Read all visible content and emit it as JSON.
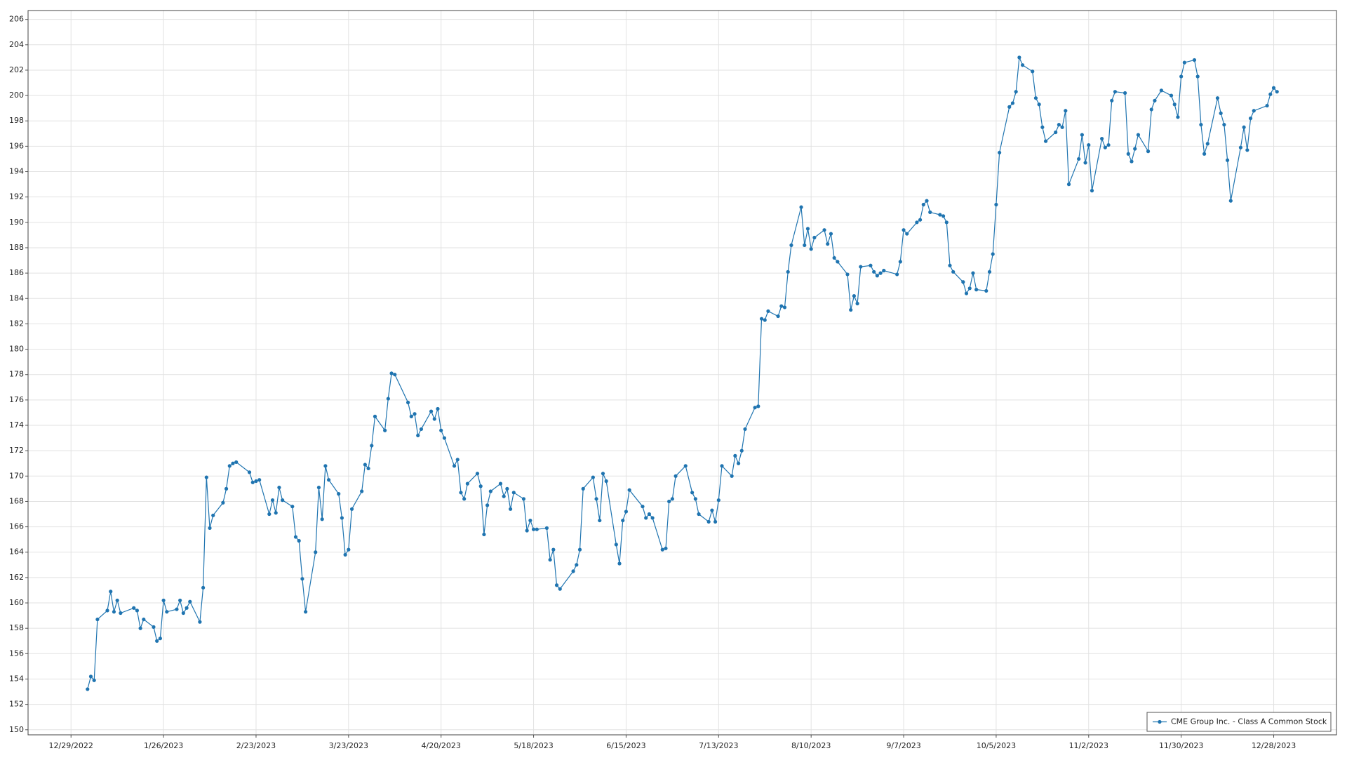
{
  "chart_data": {
    "type": "line",
    "x": [
      "1/3/2023",
      "1/4/2023",
      "1/5/2023",
      "1/6/2023",
      "1/9/2023",
      "1/10/2023",
      "1/11/2023",
      "1/12/2023",
      "1/13/2023",
      "1/17/2023",
      "1/18/2023",
      "1/19/2023",
      "1/20/2023",
      "1/23/2023",
      "1/24/2023",
      "1/25/2023",
      "1/26/2023",
      "1/27/2023",
      "1/30/2023",
      "1/31/2023",
      "2/1/2023",
      "2/2/2023",
      "2/3/2023",
      "2/6/2023",
      "2/7/2023",
      "2/8/2023",
      "2/9/2023",
      "2/10/2023",
      "2/13/2023",
      "2/14/2023",
      "2/15/2023",
      "2/16/2023",
      "2/17/2023",
      "2/21/2023",
      "2/22/2023",
      "2/23/2023",
      "2/24/2023",
      "2/27/2023",
      "2/28/2023",
      "3/1/2023",
      "3/2/2023",
      "3/3/2023",
      "3/6/2023",
      "3/7/2023",
      "3/8/2023",
      "3/9/2023",
      "3/10/2023",
      "3/13/2023",
      "3/14/2023",
      "3/15/2023",
      "3/16/2023",
      "3/17/2023",
      "3/20/2023",
      "3/21/2023",
      "3/22/2023",
      "3/23/2023",
      "3/24/2023",
      "3/27/2023",
      "3/28/2023",
      "3/29/2023",
      "3/30/2023",
      "3/31/2023",
      "4/3/2023",
      "4/4/2023",
      "4/5/2023",
      "4/6/2023",
      "4/10/2023",
      "4/11/2023",
      "4/12/2023",
      "4/13/2023",
      "4/14/2023",
      "4/17/2023",
      "4/18/2023",
      "4/19/2023",
      "4/20/2023",
      "4/21/2023",
      "4/24/2023",
      "4/25/2023",
      "4/26/2023",
      "4/27/2023",
      "4/28/2023",
      "5/1/2023",
      "5/2/2023",
      "5/3/2023",
      "5/4/2023",
      "5/5/2023",
      "5/8/2023",
      "5/9/2023",
      "5/10/2023",
      "5/11/2023",
      "5/12/2023",
      "5/15/2023",
      "5/16/2023",
      "5/17/2023",
      "5/18/2023",
      "5/19/2023",
      "5/22/2023",
      "5/23/2023",
      "5/24/2023",
      "5/25/2023",
      "5/26/2023",
      "5/30/2023",
      "5/31/2023",
      "6/1/2023",
      "6/2/2023",
      "6/5/2023",
      "6/6/2023",
      "6/7/2023",
      "6/8/2023",
      "6/9/2023",
      "6/12/2023",
      "6/13/2023",
      "6/14/2023",
      "6/15/2023",
      "6/16/2023",
      "6/20/2023",
      "6/21/2023",
      "6/22/2023",
      "6/23/2023",
      "6/26/2023",
      "6/27/2023",
      "6/28/2023",
      "6/29/2023",
      "6/30/2023",
      "7/3/2023",
      "7/5/2023",
      "7/6/2023",
      "7/7/2023",
      "7/10/2023",
      "7/11/2023",
      "7/12/2023",
      "7/13/2023",
      "7/14/2023",
      "7/17/2023",
      "7/18/2023",
      "7/19/2023",
      "7/20/2023",
      "7/21/2023",
      "7/24/2023",
      "7/25/2023",
      "7/26/2023",
      "7/27/2023",
      "7/28/2023",
      "7/31/2023",
      "8/1/2023",
      "8/2/2023",
      "8/3/2023",
      "8/4/2023",
      "8/7/2023",
      "8/8/2023",
      "8/9/2023",
      "8/10/2023",
      "8/11/2023",
      "8/14/2023",
      "8/15/2023",
      "8/16/2023",
      "8/17/2023",
      "8/18/2023",
      "8/21/2023",
      "8/22/2023",
      "8/23/2023",
      "8/24/2023",
      "8/25/2023",
      "8/28/2023",
      "8/29/2023",
      "8/30/2023",
      "8/31/2023",
      "9/1/2023",
      "9/5/2023",
      "9/6/2023",
      "9/7/2023",
      "9/8/2023",
      "9/11/2023",
      "9/12/2023",
      "9/13/2023",
      "9/14/2023",
      "9/15/2023",
      "9/18/2023",
      "9/19/2023",
      "9/20/2023",
      "9/21/2023",
      "9/22/2023",
      "9/25/2023",
      "9/26/2023",
      "9/27/2023",
      "9/28/2023",
      "9/29/2023",
      "10/2/2023",
      "10/3/2023",
      "10/4/2023",
      "10/5/2023",
      "10/6/2023",
      "10/9/2023",
      "10/10/2023",
      "10/11/2023",
      "10/12/2023",
      "10/13/2023",
      "10/16/2023",
      "10/17/2023",
      "10/18/2023",
      "10/19/2023",
      "10/20/2023",
      "10/23/2023",
      "10/24/2023",
      "10/25/2023",
      "10/26/2023",
      "10/27/2023",
      "10/30/2023",
      "10/31/2023",
      "11/1/2023",
      "11/2/2023",
      "11/3/2023",
      "11/6/2023",
      "11/7/2023",
      "11/8/2023",
      "11/9/2023",
      "11/10/2023",
      "11/13/2023",
      "11/14/2023",
      "11/15/2023",
      "11/16/2023",
      "11/17/2023",
      "11/20/2023",
      "11/21/2023",
      "11/22/2023",
      "11/24/2023",
      "11/27/2023",
      "11/28/2023",
      "11/29/2023",
      "11/30/2023",
      "12/1/2023",
      "12/4/2023",
      "12/5/2023",
      "12/6/2023",
      "12/7/2023",
      "12/8/2023",
      "12/11/2023",
      "12/12/2023",
      "12/13/2023",
      "12/14/2023",
      "12/15/2023",
      "12/18/2023",
      "12/19/2023",
      "12/20/2023",
      "12/21/2023",
      "12/22/2023",
      "12/26/2023",
      "12/27/2023",
      "12/28/2023",
      "12/29/2023"
    ],
    "series": [
      {
        "name": "CME Group Inc. - Class A Common Stock",
        "color": "#1f74b0",
        "values": [
          153.2,
          154.2,
          153.9,
          158.7,
          159.4,
          160.9,
          159.3,
          160.2,
          159.2,
          159.6,
          159.4,
          158.0,
          158.7,
          158.1,
          157.0,
          157.2,
          160.2,
          159.3,
          159.5,
          160.2,
          159.2,
          159.6,
          160.1,
          158.5,
          161.2,
          169.9,
          165.9,
          166.9,
          167.9,
          169.0,
          170.8,
          171.0,
          171.1,
          170.3,
          169.5,
          169.6,
          169.7,
          167.0,
          168.1,
          167.1,
          169.1,
          168.1,
          167.6,
          165.2,
          164.9,
          161.9,
          159.3,
          164.0,
          169.1,
          166.6,
          170.8,
          169.7,
          168.6,
          166.7,
          163.8,
          164.2,
          167.4,
          168.8,
          170.9,
          170.6,
          172.4,
          174.7,
          173.6,
          176.1,
          178.1,
          178.0,
          175.8,
          174.7,
          174.9,
          173.2,
          173.7,
          175.1,
          174.5,
          175.3,
          173.6,
          173.0,
          170.8,
          171.3,
          168.7,
          168.2,
          169.4,
          170.2,
          169.2,
          165.4,
          167.7,
          168.8,
          169.4,
          168.4,
          169.0,
          167.4,
          168.7,
          168.2,
          165.7,
          166.5,
          165.8,
          165.8,
          165.9,
          163.4,
          164.2,
          161.4,
          161.1,
          162.5,
          163.0,
          164.2,
          169.0,
          169.9,
          168.2,
          166.5,
          170.2,
          169.6,
          164.6,
          163.1,
          166.5,
          167.2,
          168.9,
          167.6,
          166.7,
          167.0,
          166.7,
          164.2,
          164.3,
          168.0,
          168.2,
          170.0,
          170.8,
          168.7,
          168.2,
          167.0,
          166.4,
          167.3,
          166.4,
          168.1,
          170.8,
          170.0,
          171.6,
          171.0,
          172.0,
          173.7,
          175.4,
          175.5,
          182.4,
          182.3,
          183.0,
          182.6,
          183.4,
          183.3,
          186.1,
          188.2,
          191.2,
          188.2,
          189.5,
          187.9,
          188.8,
          189.4,
          188.3,
          189.1,
          187.2,
          186.9,
          185.9,
          183.1,
          184.2,
          183.6,
          186.5,
          186.6,
          186.1,
          185.8,
          186.0,
          186.2,
          185.9,
          186.9,
          189.4,
          189.1,
          190.0,
          190.2,
          191.4,
          191.7,
          190.8,
          190.6,
          190.5,
          190.0,
          186.6,
          186.1,
          185.3,
          184.4,
          184.8,
          186.0,
          184.7,
          184.6,
          186.1,
          187.5,
          191.4,
          195.5,
          199.1,
          199.4,
          200.3,
          203.0,
          202.4,
          201.9,
          199.8,
          199.3,
          197.5,
          196.4,
          197.1,
          197.7,
          197.5,
          198.8,
          193.0,
          195.0,
          196.9,
          194.7,
          196.1,
          192.5,
          196.6,
          195.9,
          196.1,
          199.6,
          200.3,
          200.2,
          195.4,
          194.8,
          195.8,
          196.9,
          195.6,
          198.9,
          199.6,
          200.4,
          200.0,
          199.3,
          198.3,
          201.5,
          202.6,
          202.8,
          201.5,
          197.7,
          195.4,
          196.2,
          199.8,
          198.6,
          197.7,
          194.9,
          191.7,
          195.9,
          197.5,
          195.7,
          198.2,
          198.8,
          199.2,
          200.1,
          200.6,
          200.3
        ]
      }
    ],
    "xlim": [
      "12/16/2022",
      "1/16/2024"
    ],
    "xticks": [
      "12/29/2022",
      "1/26/2023",
      "2/23/2023",
      "3/23/2023",
      "4/20/2023",
      "5/18/2023",
      "6/15/2023",
      "7/13/2023",
      "8/10/2023",
      "9/7/2023",
      "10/5/2023",
      "11/2/2023",
      "11/30/2023",
      "12/28/2023"
    ],
    "ylim": [
      149.6,
      206.7
    ],
    "yticks": [
      150,
      152,
      154,
      156,
      158,
      160,
      162,
      164,
      166,
      168,
      170,
      172,
      174,
      176,
      178,
      180,
      182,
      184,
      186,
      188,
      190,
      192,
      194,
      196,
      198,
      200,
      202,
      204,
      206
    ],
    "grid": true,
    "legend": "lower right"
  }
}
